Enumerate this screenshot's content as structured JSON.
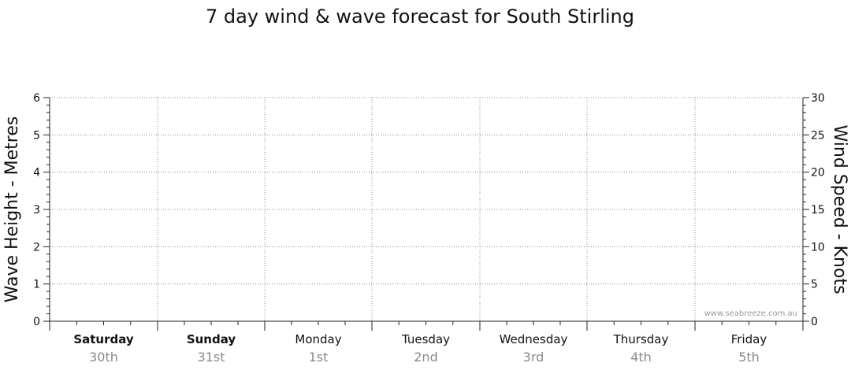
{
  "chart_data": {
    "type": "line",
    "title": "7 day wind & wave forecast for South Stirling",
    "ylabel_left": "Wave Height - Metres",
    "ylabel_right": "Wind Speed - Knots",
    "ylim_left": [
      0,
      6
    ],
    "ylim_right": [
      0,
      30
    ],
    "yticks_left": [
      "0",
      "1",
      "2",
      "3",
      "4",
      "5",
      "6"
    ],
    "yticks_right": [
      "0",
      "5",
      "10",
      "15",
      "20",
      "25",
      "30"
    ],
    "days": [
      {
        "day": "Saturday",
        "date": "30th",
        "bold": true
      },
      {
        "day": "Sunday",
        "date": "31st",
        "bold": true
      },
      {
        "day": "Monday",
        "date": "1st",
        "bold": false
      },
      {
        "day": "Tuesday",
        "date": "2nd",
        "bold": false
      },
      {
        "day": "Wednesday",
        "date": "3rd",
        "bold": false
      },
      {
        "day": "Thursday",
        "date": "4th",
        "bold": false
      },
      {
        "day": "Friday",
        "date": "5th",
        "bold": false
      }
    ],
    "series": [],
    "grid": true,
    "watermark": "www.seabreeze.com.au"
  }
}
